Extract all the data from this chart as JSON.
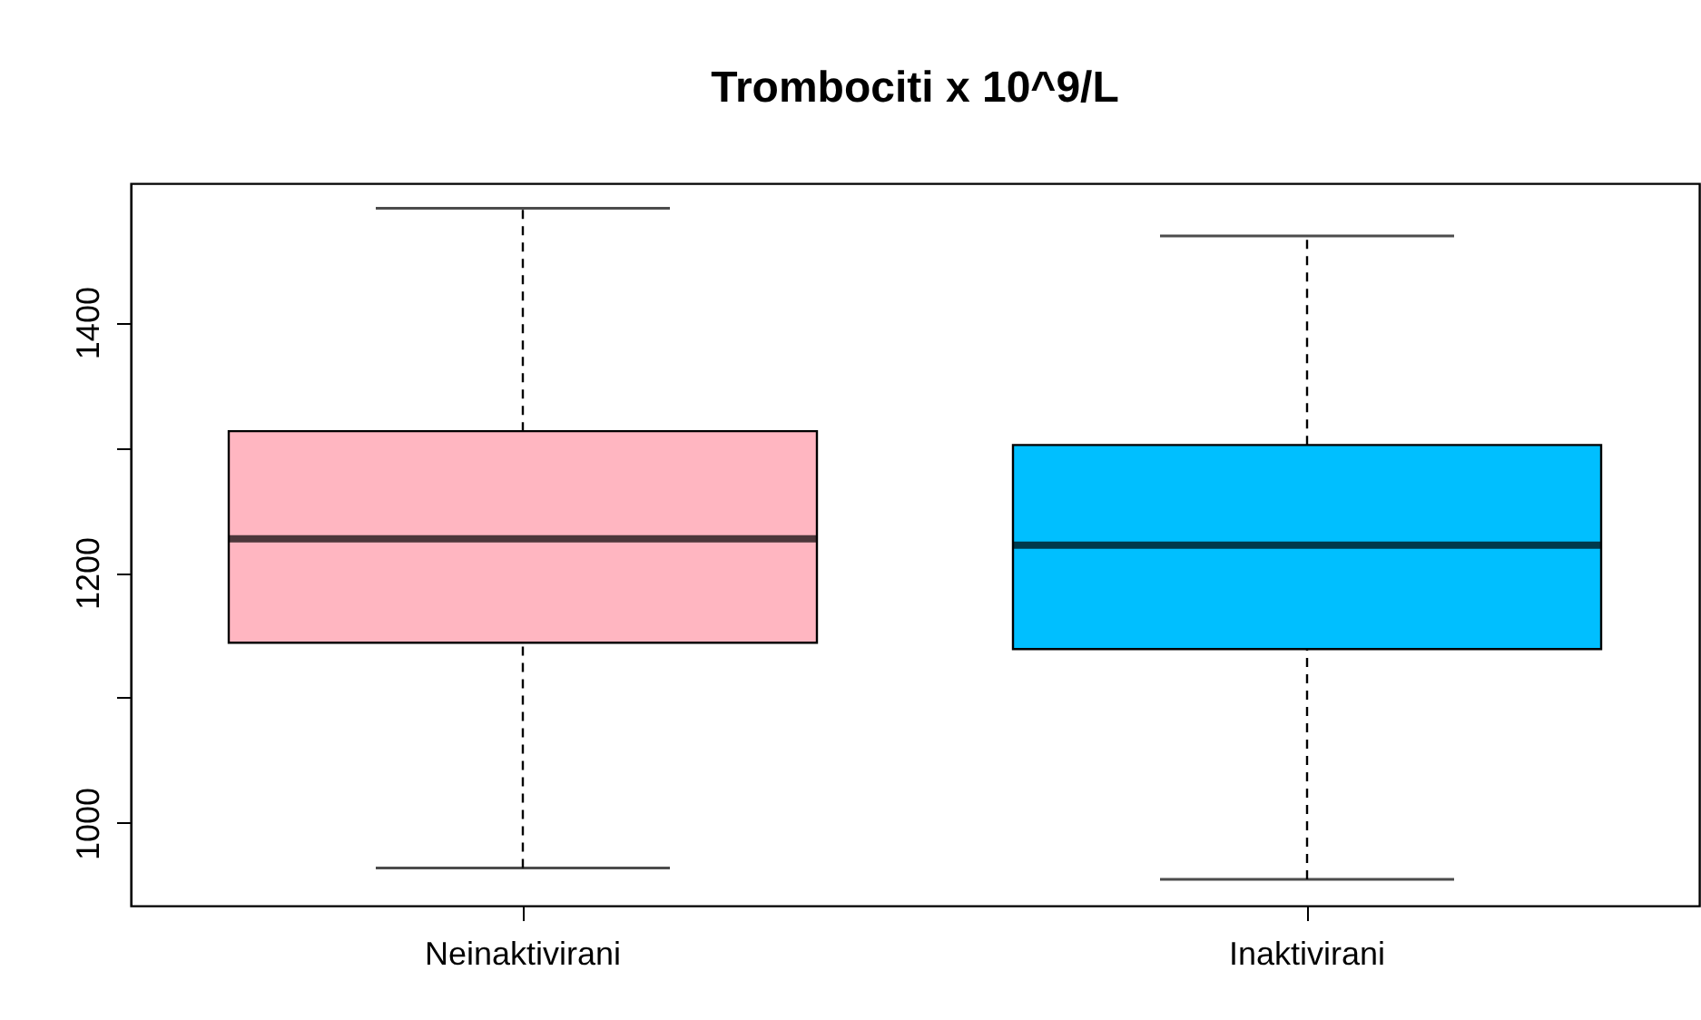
{
  "chart_data": {
    "type": "box",
    "title": "Trombociti x 10^9/L",
    "categories": [
      "Neinaktivirani",
      "Inaktivirani"
    ],
    "boxes": [
      {
        "low": 964,
        "q1": 1144,
        "median": 1227,
        "q3": 1313,
        "high": 1491
      },
      {
        "low": 955,
        "q1": 1139,
        "median": 1222,
        "q3": 1302,
        "high": 1469
      }
    ],
    "colors": [
      "#ffb6c1",
      "#00bfff"
    ],
    "ylim": [
      934,
      1511
    ],
    "yticks": [
      1000,
      {
        "value": 1100,
        "label": null
      },
      1200,
      {
        "value": 1300,
        "label": null
      },
      1400
    ],
    "grid": false,
    "line_style": "dashed"
  }
}
